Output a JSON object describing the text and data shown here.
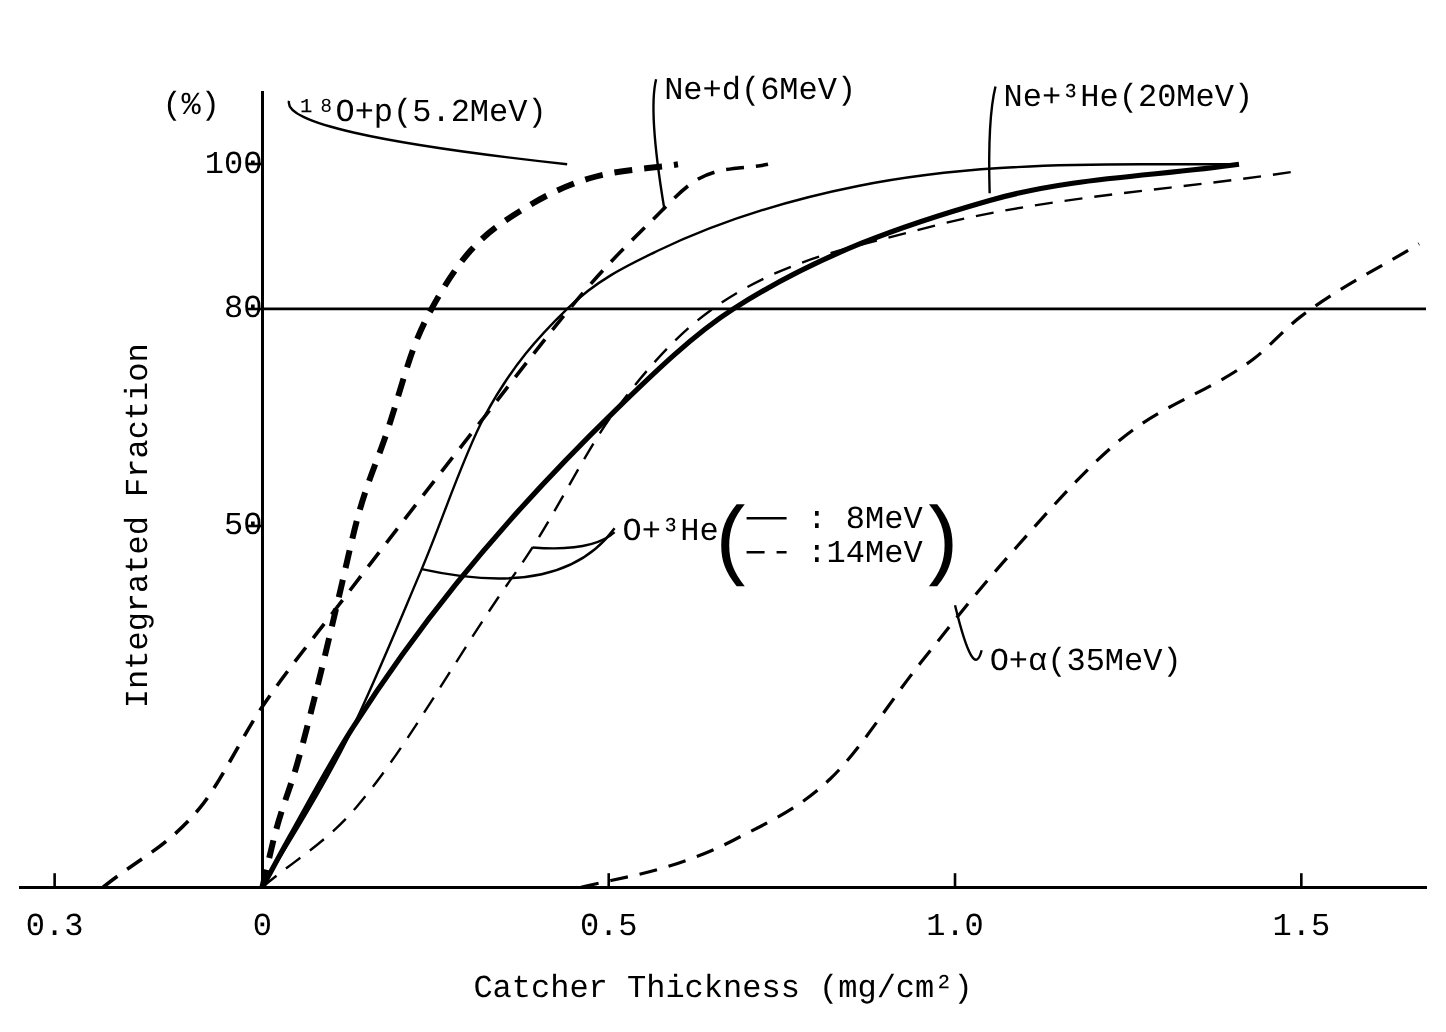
{
  "chart_data": {
    "type": "line",
    "xlabel": "Catcher Thickness (mg/cm²)",
    "ylabel": "Integrated Fraction",
    "annotations": [
      "(%)",
      {
        "text": "O+³He(",
        "x": 0.23,
        "y": 44
      },
      ")"
    ],
    "xlim": [
      -0.35,
      1.68
    ],
    "ylim": [
      0,
      110
    ],
    "xticks": [
      {
        "value": -0.3,
        "label": "0.3"
      },
      0,
      0.5,
      {
        "value": 1,
        "label": "1.0"
      },
      1.5
    ],
    "yticks": [
      50,
      80,
      100
    ],
    "grid": false,
    "legend": "right",
    "marker": "none",
    "ref_lines": [
      {
        "axis": "y",
        "value": 80,
        "color": "#000000"
      }
    ],
    "series": [
      {
        "name": "¹⁸O+p(5.2MeV)",
        "color": "#000000",
        "line_style": "dashed",
        "x": [
          0,
          0.02,
          0.05,
          0.08,
          0.11,
          0.14,
          0.18,
          0.22,
          0.25,
          0.3,
          0.38,
          0.47,
          0.6
        ],
        "values": [
          0,
          8,
          17,
          28,
          40,
          52,
          63,
          75,
          81,
          88,
          94,
          98,
          100
        ]
      },
      {
        "name": "Ne+d(6MeV)",
        "color": "#000000",
        "line_style": "dashed",
        "x": [
          -0.23,
          -0.09,
          0,
          0.11,
          0.32,
          0.47,
          0.56,
          0.63,
          0.73
        ],
        "values": [
          0,
          11,
          25,
          39,
          65,
          83,
          92,
          98,
          100
        ]
      },
      {
        "name": "Ne+³He(20MeV)",
        "color": "#000000",
        "line_style": "solid",
        "x": [
          0,
          0.04,
          0.13,
          0.28,
          0.51,
          0.68,
          1.05,
          1.41
        ],
        "values": [
          0,
          7,
          22,
          42,
          66,
          80,
          95,
          100
        ]
      },
      {
        "name": ": 8MeV",
        "color": "#000000",
        "line_style": "solid",
        "x": [
          0,
          0.12,
          0.23,
          0.32,
          0.44,
          0.57,
          0.86,
          1.27,
          1.41
        ],
        "values": [
          0,
          20,
          44,
          65,
          80,
          88,
          97,
          100,
          100
        ]
      },
      {
        "name": ":14MeV",
        "color": "#000000",
        "line_style": "dashed",
        "x": [
          0,
          0.135,
          0.34,
          0.39,
          0.51,
          0.65,
          0.95,
          1.49
        ],
        "values": [
          0,
          11,
          40,
          47,
          66,
          80,
          91,
          99
        ]
      },
      {
        "name": "O+α(35MeV)",
        "color": "#000000",
        "line_style": "dashed",
        "x": [
          0.46,
          0.59,
          0.68,
          0.82,
          0.95,
          1.07,
          1.24,
          1.43,
          1.5,
          1.67
        ],
        "values": [
          0,
          3,
          6.5,
          15,
          31,
          45,
          62,
          73,
          79,
          89
        ]
      }
    ]
  }
}
